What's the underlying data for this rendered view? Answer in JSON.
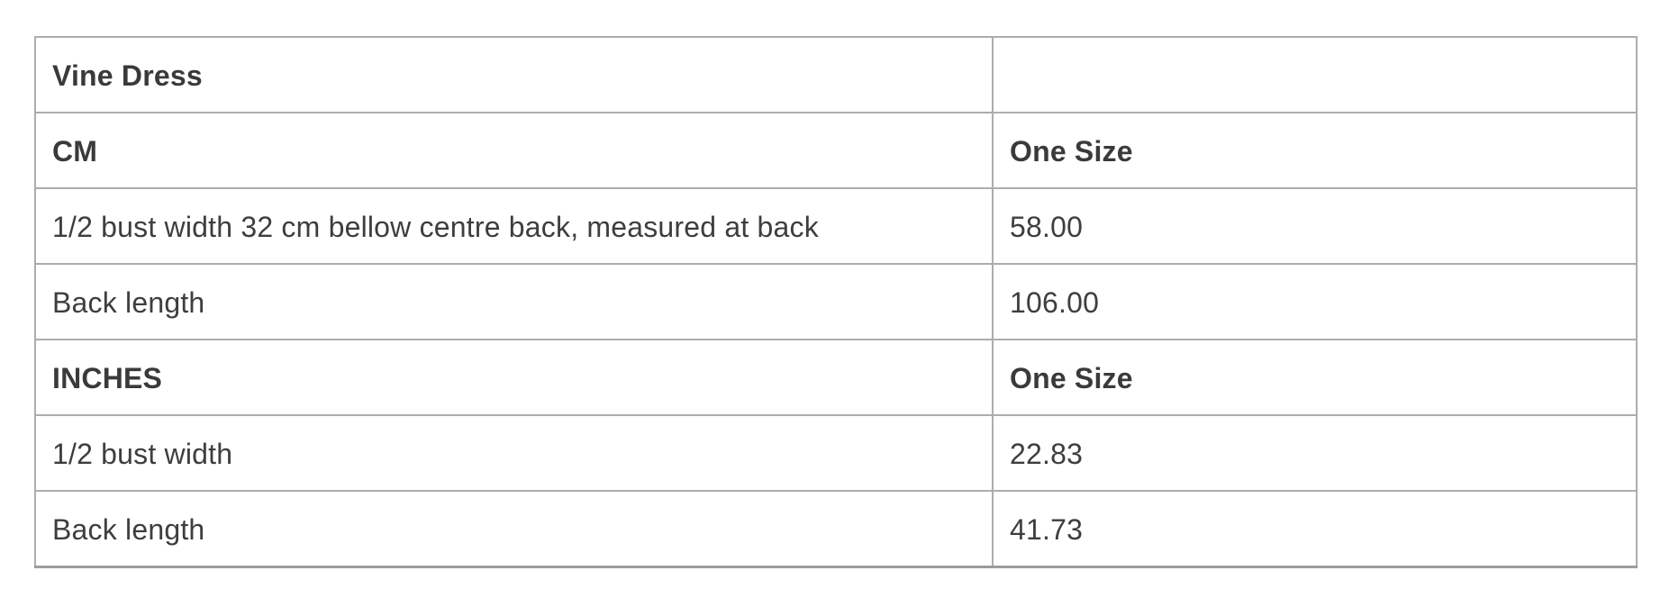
{
  "theme": {
    "background": "#ffffff",
    "border_color": "#adadad",
    "bottom_border_color": "#9c9c9c",
    "text_color": "#3e3e3e"
  },
  "size_chart": {
    "rows": [
      {
        "label": "Vine Dress",
        "value": "",
        "bold": true
      },
      {
        "label": "CM",
        "value": "One Size",
        "bold": true
      },
      {
        "label": "1/2 bust width 32 cm bellow centre back, measured at back",
        "value": "58.00",
        "bold": false
      },
      {
        "label": "Back length",
        "value": "106.00",
        "bold": false
      },
      {
        "label": "INCHES",
        "value": "One Size",
        "bold": true
      },
      {
        "label": "1/2 bust width",
        "value": "22.83",
        "bold": false
      },
      {
        "label": "Back length",
        "value": "41.73",
        "bold": false
      }
    ]
  }
}
